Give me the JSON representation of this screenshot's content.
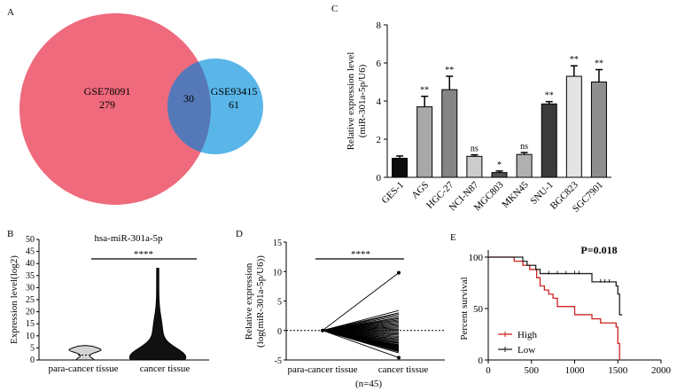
{
  "panel_letters": {
    "a": "A",
    "b": "B",
    "c": "C",
    "d": "D",
    "e": "E"
  },
  "colors": {
    "venn_left": "#ee6a7c",
    "venn_right": "#5ab6e8",
    "venn_overlap": "#5578b8",
    "high": "#cc2222",
    "low": "#222222"
  },
  "venn": {
    "left_label": "GSE78091",
    "left_count": "279",
    "right_label": "GSE93415",
    "right_count": "61",
    "overlap_count": "30"
  },
  "chart_data": [
    {
      "panel": "B",
      "type": "violin",
      "title": "hsa-miR-301a-5p",
      "ylabel": "Expression level(log2)",
      "categories": [
        "para-cancer tissue",
        "cancer tissue"
      ],
      "ylim": [
        0,
        50
      ],
      "yticks": [
        0,
        5,
        10,
        15,
        20,
        25,
        30,
        35,
        40,
        45,
        50
      ],
      "ranges": [
        [
          0,
          6
        ],
        [
          0,
          38
        ]
      ],
      "significance": "****"
    },
    {
      "panel": "C",
      "type": "bar",
      "ylabel": "Relative expression level",
      "ylabel2": "(miR-301a-5p/U6)",
      "ylim": [
        0,
        8
      ],
      "yticks": [
        0,
        2,
        4,
        6,
        8
      ],
      "categories": [
        "GES-1",
        "AGS",
        "HGC-27",
        "NCI-N87",
        "MGC803",
        "MKN45",
        "SNU-1",
        "BGC823",
        "SGC7901"
      ],
      "values": [
        1.0,
        3.7,
        4.6,
        1.1,
        0.25,
        1.2,
        3.85,
        5.3,
        5.0
      ],
      "errors": [
        0.12,
        0.55,
        0.7,
        0.08,
        0.08,
        0.1,
        0.12,
        0.55,
        0.65
      ],
      "significance": [
        "",
        "**",
        "**",
        "ns",
        "*",
        "ns",
        "**",
        "**",
        "**"
      ],
      "bar_colors": [
        "#0c0c0c",
        "#a8a8a8",
        "#858585",
        "#cccccc",
        "#505050",
        "#b0b0b0",
        "#3a3a3a",
        "#e4e4e4",
        "#8e8e8e"
      ]
    },
    {
      "panel": "D",
      "type": "line",
      "ylabel": "Relative expression",
      "ylabel2": "(log(miR-301a-5p/U6))",
      "ylim": [
        -5,
        15
      ],
      "yticks": [
        -5,
        0,
        5,
        10,
        15
      ],
      "categories": [
        "para-cancer tissue",
        "cancer tissue"
      ],
      "note": "(n=45)",
      "significance": "****",
      "paired_start": 0,
      "paired_end_values": [
        9.8,
        3.4,
        3.0,
        2.8,
        2.5,
        2.2,
        2.0,
        1.8,
        1.6,
        1.4,
        1.2,
        1.0,
        0.8,
        0.6,
        0.4,
        0.2,
        0.0,
        -0.2,
        -0.4,
        -0.6,
        -0.8,
        -1.0,
        -1.2,
        -1.4,
        -1.5,
        -1.7,
        -1.8,
        -2.0,
        -2.1,
        -2.2,
        -2.4,
        -2.5,
        -2.6,
        -2.7,
        -2.8,
        -2.9,
        -3.0,
        -3.1,
        -3.2,
        -3.3,
        -3.4,
        -3.5,
        -3.6,
        -3.8,
        -4.6
      ]
    },
    {
      "panel": "E",
      "type": "line",
      "subtype": "kaplan-meier",
      "ylabel": "Percent survival",
      "annotation": "P=0.018",
      "xlim": [
        0,
        2000
      ],
      "ylim": [
        0,
        100
      ],
      "xticks": [
        0,
        500,
        1000,
        1500,
        2000
      ],
      "yticks": [
        0,
        50,
        100
      ],
      "legend_position": "bottom-left",
      "series": [
        {
          "name": "High",
          "x": [
            0,
            170,
            300,
            400,
            480,
            560,
            600,
            650,
            700,
            750,
            800,
            1000,
            1200,
            1300,
            1480,
            1500,
            1520
          ],
          "y": [
            100,
            100,
            96,
            92,
            88,
            80,
            72,
            68,
            64,
            60,
            52,
            44,
            40,
            36,
            32,
            16,
            0
          ]
        },
        {
          "name": "Low",
          "x": [
            0,
            170,
            400,
            450,
            550,
            600,
            1150,
            1200,
            1470,
            1480,
            1500,
            1520,
            1550
          ],
          "y": [
            100,
            100,
            96,
            92,
            88,
            84,
            84,
            76,
            76,
            72,
            64,
            44,
            44
          ]
        }
      ]
    }
  ]
}
